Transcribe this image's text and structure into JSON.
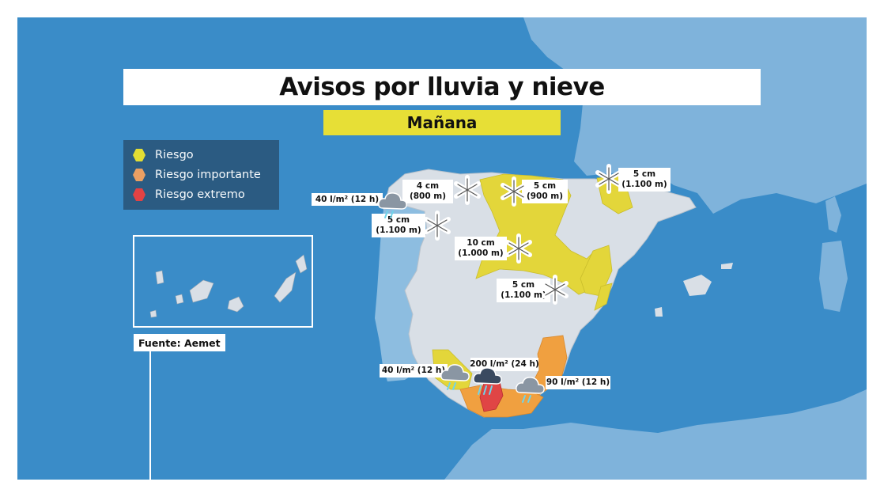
{
  "title": "Avisos por lluvia y nieve",
  "subtitle": "Mañana",
  "source": "Fuente: Aemet",
  "legend": [
    {
      "label": "Riesgo",
      "color": "#e8e030"
    },
    {
      "label": "Riesgo importante",
      "color": "#f0a060"
    },
    {
      "label": "Riesgo extremo",
      "color": "#e84040"
    }
  ],
  "colors": {
    "sea": "#3a8cc8",
    "land_other": "#a8c8e0",
    "land_spain": "#d8dee6",
    "risk": "#e3d63a",
    "important": "#f0a040",
    "extreme": "#e04545"
  },
  "warnings": [
    {
      "id": "snow-cantabrian-west",
      "type": "snow",
      "amount": "4 cm",
      "altitude": "(800 m)",
      "icon": "snowflake-icon"
    },
    {
      "id": "snow-cantabrian-center",
      "type": "snow",
      "amount": "5 cm",
      "altitude": "(900 m)",
      "icon": "snowflake-icon"
    },
    {
      "id": "snow-pyrenees-west",
      "type": "snow",
      "amount": "5 cm",
      "altitude": "(1.100 m)",
      "icon": "snowflake-icon"
    },
    {
      "id": "rain-galicia",
      "type": "rain",
      "amount": "40 l/m² (12 h)",
      "icon": "rain-cloud-icon"
    },
    {
      "id": "snow-galicia",
      "type": "snow",
      "amount": "5 cm",
      "altitude": "(1.100 m)",
      "icon": "snowflake-icon"
    },
    {
      "id": "snow-iberian",
      "type": "snow",
      "amount": "10 cm",
      "altitude": "(1.000 m)",
      "icon": "snowflake-icon"
    },
    {
      "id": "snow-central",
      "type": "snow",
      "amount": "5 cm",
      "altitude": "(1.100 m)",
      "icon": "snowflake-icon"
    },
    {
      "id": "rain-huelva",
      "type": "rain",
      "amount": "40 l/m² (12 h)",
      "icon": "rain-cloud-icon"
    },
    {
      "id": "rain-malaga",
      "type": "rain",
      "amount": "200 l/m² (24 h)",
      "icon": "storm-cloud-icon"
    },
    {
      "id": "rain-granada",
      "type": "rain",
      "amount": "90 l/m² (12 h)",
      "icon": "rain-cloud-icon"
    }
  ]
}
